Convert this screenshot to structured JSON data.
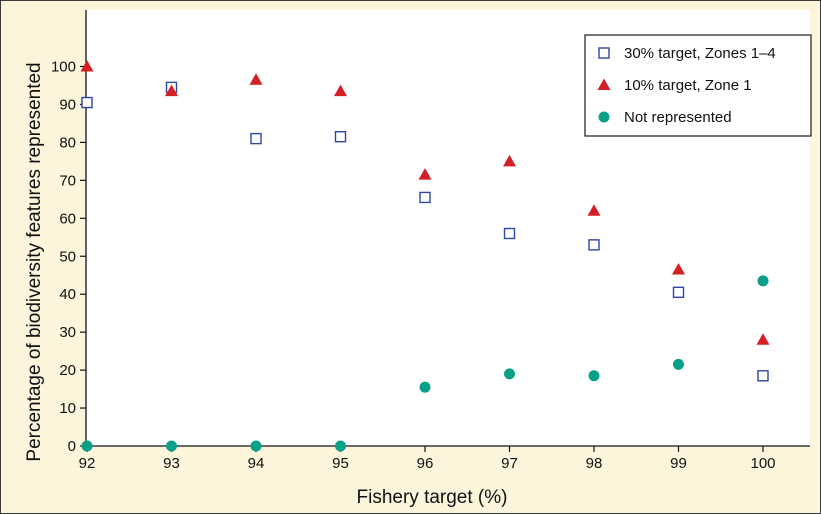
{
  "chart_data": {
    "type": "scatter",
    "xlabel": "Fishery target (%)",
    "ylabel": "Percentage of biodiversity features represented",
    "xlim": [
      92,
      100
    ],
    "ylim": [
      0,
      100
    ],
    "x_ticks": [
      92,
      93,
      94,
      95,
      96,
      97,
      98,
      99,
      100
    ],
    "y_ticks": [
      0,
      10,
      20,
      30,
      40,
      50,
      60,
      70,
      80,
      90,
      100
    ],
    "grid": false,
    "legend_position": "top-right",
    "series": [
      {
        "name": "30% target, Zones 1–4",
        "marker": "open-square",
        "color": "#2e45a8",
        "x": [
          92,
          93,
          94,
          95,
          96,
          97,
          98,
          99,
          100
        ],
        "y": [
          90.5,
          94.5,
          81,
          81.5,
          65.5,
          56,
          53,
          40.5,
          18.5
        ]
      },
      {
        "name": "10% target, Zone 1",
        "marker": "filled-triangle",
        "color": "#d41f26",
        "x": [
          92,
          93,
          94,
          95,
          96,
          97,
          98,
          99,
          100
        ],
        "y": [
          100,
          93.5,
          96.5,
          93.5,
          71.5,
          75,
          62,
          46.5,
          28
        ]
      },
      {
        "name": "Not represented",
        "marker": "filled-circle",
        "color": "#0aa088",
        "x": [
          92,
          93,
          94,
          95,
          96,
          97,
          98,
          99,
          100
        ],
        "y": [
          0,
          0,
          0,
          0,
          15.5,
          19,
          18.5,
          21.5,
          43.5
        ]
      }
    ]
  }
}
